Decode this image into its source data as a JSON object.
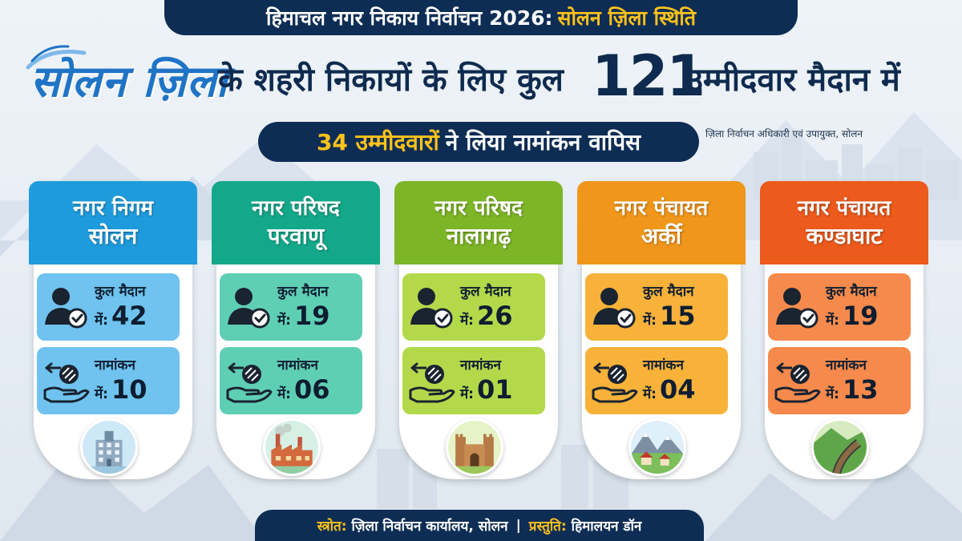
{
  "header": {
    "banner_white": "हिमाचल नगर निकाय निर्वाचन 2026:",
    "banner_yellow": "सोलन ज़िला स्थिति"
  },
  "headline": {
    "logo_text": "सोलन ज़िला",
    "middle": "के शहरी निकायों के लिए कुल",
    "total": "121",
    "end": "उम्मीदवार मैदान में"
  },
  "subheadline": {
    "count": "34 उम्मीदवारों",
    "text": "ने लिया नामांकन वापिस"
  },
  "authority": "ज़िला निर्वाचन अधिकारी एवं उपायुक्त, सोलन",
  "cards": [
    {
      "title1": "नगर निगम",
      "title2": "सोलन",
      "contest_label": "कुल मैदान",
      "contest_pre": "में:",
      "contest_value": "42",
      "withdraw_label": "नामांकन",
      "withdraw_pre": "में:",
      "withdraw_value": "10",
      "emblem": "municipal-building-icon",
      "color_head": "#1e9bdc",
      "color_box": "#6fc3ee"
    },
    {
      "title1": "नगर परिषद",
      "title2": "परवाणू",
      "contest_label": "कुल मैदान",
      "contest_pre": "में:",
      "contest_value": "19",
      "withdraw_label": "नामांकन",
      "withdraw_pre": "में:",
      "withdraw_value": "06",
      "emblem": "factory-icon",
      "color_head": "#14a88a",
      "color_box": "#5fcfb4"
    },
    {
      "title1": "नगर परिषद",
      "title2": "नालागढ़",
      "contest_label": "कुल मैदान",
      "contest_pre": "में:",
      "contest_value": "26",
      "withdraw_label": "नामांकन",
      "withdraw_pre": "में:",
      "withdraw_value": "01",
      "emblem": "fort-icon",
      "color_head": "#7cb526",
      "color_box": "#b3d94a"
    },
    {
      "title1": "नगर पंचायत",
      "title2": "अर्की",
      "contest_label": "कुल मैदान",
      "contest_pre": "में:",
      "contest_value": "15",
      "withdraw_label": "नामांकन",
      "withdraw_pre": "में:",
      "withdraw_value": "04",
      "emblem": "mountain-village-icon",
      "color_head": "#f0961a",
      "color_box": "#f8b23a"
    },
    {
      "title1": "नगर पंचायत",
      "title2": "कण्डाघाट",
      "contest_label": "कुल मैदान",
      "contest_pre": "में:",
      "contest_value": "19",
      "withdraw_label": "नामांकन",
      "withdraw_pre": "में:",
      "withdraw_value": "13",
      "emblem": "railway-track-icon",
      "color_head": "#ec5a1c",
      "color_box": "#f58a4c"
    }
  ],
  "footer": {
    "source_label": "स्त्रोत:",
    "source_value": "ज़िला निर्वाचन कार्यालय, सोलन",
    "separator": "|",
    "presented_label": "प्रस्तुति:",
    "presented_value": "हिमालयन डॉन"
  },
  "colors": {
    "navy": "#0e2d55",
    "accent_yellow": "#ffc21a",
    "logo_blue": "#1f74c6"
  }
}
